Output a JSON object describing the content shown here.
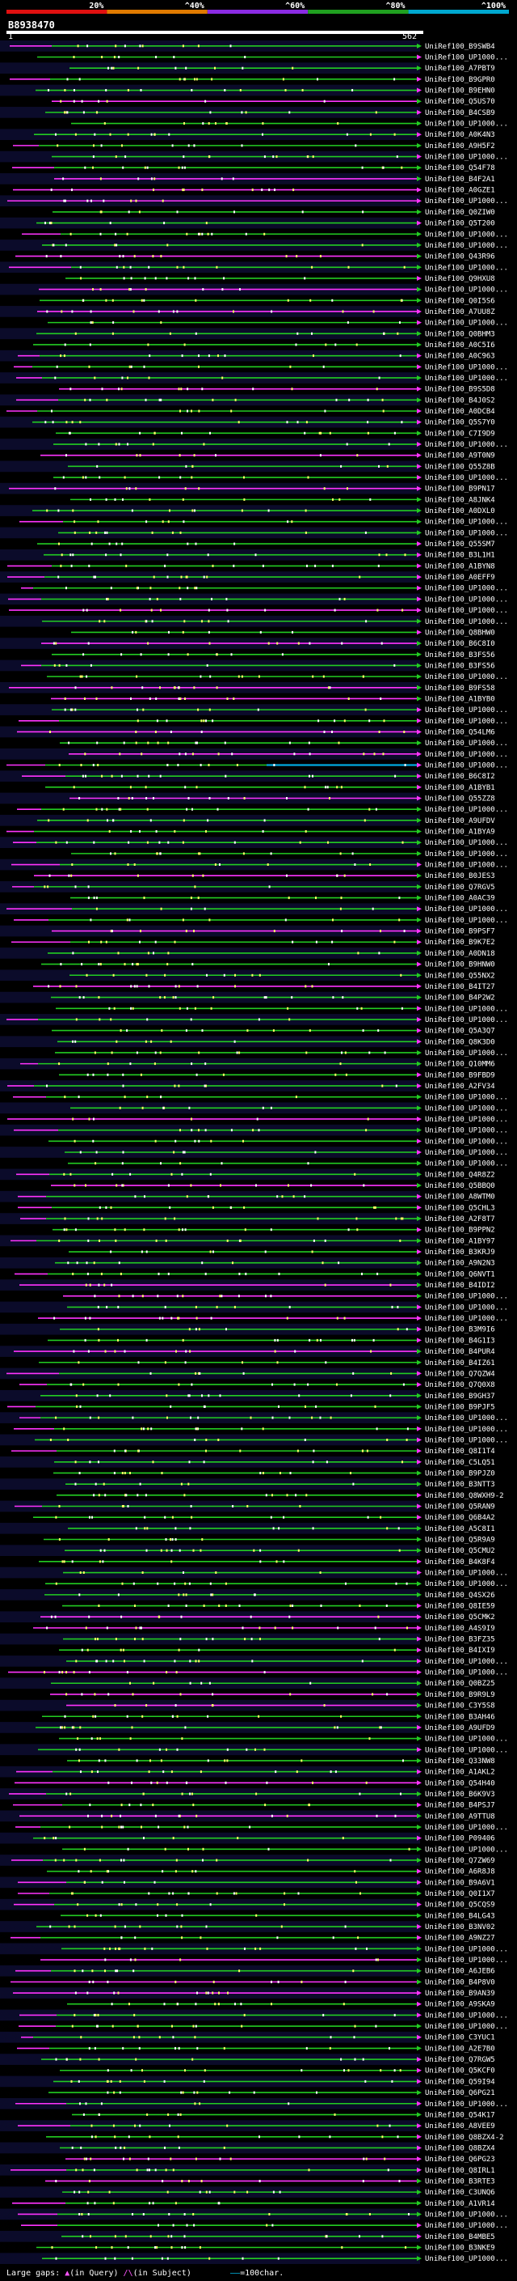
{
  "scale": {
    "ticks": [
      "20%",
      "^40%",
      "^60%",
      "^80%",
      "^100%"
    ],
    "colors": [
      "#e01010",
      "#e07a00",
      "#8a2be2",
      "#20a020",
      "#00a8d0"
    ]
  },
  "query": {
    "id": "B8938470",
    "start": "1",
    "end": "562"
  },
  "colors": {
    "hit": "#22cc22",
    "gap": "#ff33ff",
    "highlight": "#00aadd",
    "background": "#000000",
    "row_band": "#0b0b2a"
  },
  "hits": [
    "UniRef100_B9SWB4",
    "UniRef100_UP1000...",
    "UniRef100_A7PBT9",
    "UniRef100_B9GPR0",
    "UniRef100_B9EHN0",
    "UniRef100_Q5US70",
    "UniRef100_B4CSB9",
    "UniRef100_UP1000...",
    "UniRef100_A0K4N3",
    "UniRef100_A9H5F2",
    "UniRef100_UP1000...",
    "UniRef100_Q54F78",
    "UniRef100_B4F2A1",
    "UniRef100_A0GZE1",
    "UniRef100_UP1000...",
    "UniRef100_Q0ZIW0",
    "UniRef100_Q5T200",
    "UniRef100_UP1000...",
    "UniRef100_UP1000...",
    "UniRef100_Q43R96",
    "UniRef100_UP1000...",
    "UniRef100_Q9HXU8",
    "UniRef100_UP1000...",
    "UniRef100_Q0I5S6",
    "UniRef100_A7UU8Z",
    "UniRef100_UP1000...",
    "UniRef100_Q0BHM3",
    "UniRef100_A0C5I6",
    "UniRef100_A0C963",
    "UniRef100_UP1000...",
    "UniRef100_UP1000...",
    "UniRef100_B9S5D8",
    "UniRef100_B4J0S2",
    "UniRef100_A0DCB4",
    "UniRef100_Q5S7Y0",
    "UniRef100_C7I9D9",
    "UniRef100_UP1000...",
    "UniRef100_A9T0N9",
    "UniRef100_Q55Z8B",
    "UniRef100_UP1000...",
    "UniRef100_B9PN17",
    "UniRef100_A8JNK4",
    "UniRef100_A0DXL0",
    "UniRef100_UP1000...",
    "UniRef100_UP1000...",
    "UniRef100_Q55SM7",
    "UniRef100_B3L1H1",
    "UniRef100_A1BYN8",
    "UniRef100_A0EFF9",
    "UniRef100_UP1000...",
    "UniRef100_UP1000...",
    "UniRef100_UP1000...",
    "UniRef100_UP1000...",
    "UniRef100_Q8BHW0",
    "UniRef100_B6C8I0",
    "UniRef100_B3FS56",
    "UniRef100_B3FS56",
    "UniRef100_UP1000...",
    "UniRef100_B9FS58",
    "UniRef100_A1BYB0",
    "UniRef100_UP1000...",
    "UniRef100_UP1000...",
    "UniRef100_Q54LM6",
    "UniRef100_UP1000...",
    "UniRef100_UP1000...",
    "UniRef100_UP1000...",
    "UniRef100_B6C8I2",
    "UniRef100_A1BYB1",
    "UniRef100_Q55ZZ8",
    "UniRef100_UP1000...",
    "UniRef100_A9UFDV",
    "UniRef100_A1BYA9",
    "UniRef100_UP1000...",
    "UniRef100_UP1000...",
    "UniRef100_UP1000...",
    "UniRef100_B0JES3",
    "UniRef100_Q7RGV5",
    "UniRef100_A0AC39",
    "UniRef100_UP1000...",
    "UniRef100_UP1000...",
    "UniRef100_B9PSF7",
    "UniRef100_B9K7E2",
    "UniRef100_A0DN18",
    "UniRef100_B9HNW0",
    "UniRef100_Q55NX2",
    "UniRef100_B4IT27",
    "UniRef100_B4P2W2",
    "UniRef100_UP1000...",
    "UniRef100_UP1000...",
    "UniRef100_Q5A3Q7",
    "UniRef100_Q8K3D0",
    "UniRef100_UP1000...",
    "UniRef100_Q10MM6",
    "UniRef100_B9FBD9",
    "UniRef100_A2FV34",
    "UniRef100_UP1000...",
    "UniRef100_UP1000...",
    "UniRef100_UP1000...",
    "UniRef100_UP1000...",
    "UniRef100_UP1000...",
    "UniRef100_UP1000...",
    "UniRef100_UP1000...",
    "UniRef100_Q4R8Z2",
    "UniRef100_Q5BBQ0",
    "UniRef100_A8WTM0",
    "UniRef100_Q5CHL3",
    "UniRef100_A2F8T7",
    "UniRef100_B9PPN2",
    "UniRef100_A1BY97",
    "UniRef100_B3KRJ9",
    "UniRef100_A9N2N3",
    "UniRef100_Q6NVT1",
    "UniRef100_B4IDI2",
    "UniRef100_UP1000...",
    "UniRef100_UP1000...",
    "UniRef100_UP1000...",
    "UniRef100_B3M9I6",
    "UniRef100_B4G1I3",
    "UniRef100_B4PUR4",
    "UniRef100_B4IZ61",
    "UniRef100_Q7QZW4",
    "UniRef100_Q7Q0X8",
    "UniRef100_B9GH37",
    "UniRef100_B9PJF5",
    "UniRef100_UP1000...",
    "UniRef100_UP1000...",
    "UniRef100_UP1000...",
    "UniRef100_Q8I1T4",
    "UniRef100_C5LQ51",
    "UniRef100_B9PJZ0",
    "UniRef100_B3NTT3",
    "UniRef100_Q8WXH9-2",
    "UniRef100_Q5RAN9",
    "UniRef100_Q6B4A2",
    "UniRef100_A5C8I1",
    "UniRef100_Q5R9A9",
    "UniRef100_Q5CMU2",
    "UniRef100_B4K8F4",
    "UniRef100_UP1000...",
    "UniRef100_UP1000...",
    "UniRef100_Q4SX26",
    "UniRef100_Q8IE59",
    "UniRef100_Q5CMK2",
    "UniRef100_A4S9I9",
    "UniRef100_B3FZ35",
    "UniRef100_B4IXI9",
    "UniRef100_UP1000...",
    "UniRef100_UP1000...",
    "UniRef100_Q0BZ25",
    "UniRef100_B9R9L9",
    "UniRef100_C3Y5S8",
    "UniRef100_B3AH46",
    "UniRef100_A9UFD9",
    "UniRef100_UP1000...",
    "UniRef100_UP1000...",
    "UniRef100_Q33NW8",
    "UniRef100_A1AKL2",
    "UniRef100_Q54H40",
    "UniRef100_B6K9V3",
    "UniRef100_B4PSJ7",
    "UniRef100_A9TTU8",
    "UniRef100_UP1000...",
    "UniRef100_P09406",
    "UniRef100_UP1000...",
    "UniRef100_Q7ZW69",
    "UniRef100_A6R8J8",
    "UniRef100_B9A6V1",
    "UniRef100_Q0I1X7",
    "UniRef100_Q5CQS9",
    "UniRef100_B4LG43",
    "UniRef100_B3NV02",
    "UniRef100_A9NZ27",
    "UniRef100_UP1000...",
    "UniRef100_UP1000...",
    "UniRef100_A6JEB6",
    "UniRef100_B4P8V0",
    "UniRef100_B9AN39",
    "UniRef100_A9SKA9",
    "UniRef100_UP1000...",
    "UniRef100_UP1000...",
    "UniRef100_C3YUC1",
    "UniRef100_A2E7B0",
    "UniRef100_Q7RGW5",
    "UniRef100_Q5KCF0",
    "UniRef100_Q59I94",
    "UniRef100_Q6PG21",
    "UniRef100_UP1000...",
    "UniRef100_Q54K17",
    "UniRef100_A8VEE9",
    "UniRef100_Q8BZX4-2",
    "UniRef100_Q8BZX4",
    "UniRef100_Q6PG23",
    "UniRef100_Q8IRL1",
    "UniRef100_B3RTE3",
    "UniRef100_C3UNQ6",
    "UniRef100_A1VR14",
    "UniRef100_UP1000...",
    "UniRef100_UP1000...",
    "UniRef100_B4MBE5",
    "UniRef100_B3NKE9",
    "UniRef100_UP1000..."
  ],
  "footer": {
    "prefix": "Large gaps:",
    "query_gap": "(in Query)",
    "subject_gap": "(in Subject)",
    "scale_label": "=100char."
  }
}
